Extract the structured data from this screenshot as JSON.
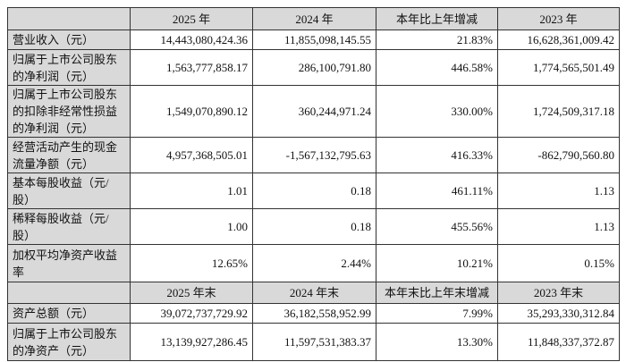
{
  "header1": [
    "",
    "2025 年",
    "2024 年",
    "本年比上年增减",
    "2023 年"
  ],
  "rows1": [
    {
      "label": "营业收入（元）",
      "values": [
        "14,443,080,424.36",
        "11,855,098,145.55",
        "21.83%",
        "16,628,361,009.42"
      ]
    },
    {
      "label": "归属于上市公司股东的净利润（元）",
      "values": [
        "1,563,777,858.17",
        "286,100,791.80",
        "446.58%",
        "1,774,565,501.49"
      ]
    },
    {
      "label": "归属于上市公司股东的扣除非经常性损益的净利润（元）",
      "values": [
        "1,549,070,890.12",
        "360,244,971.24",
        "330.00%",
        "1,724,509,317.18"
      ]
    },
    {
      "label": "经营活动产生的现金流量净额（元）",
      "values": [
        "4,957,368,505.01",
        "-1,567,132,795.63",
        "416.33%",
        "-862,790,560.80"
      ]
    },
    {
      "label": "基本每股收益（元/股）",
      "values": [
        "1.01",
        "0.18",
        "461.11%",
        "1.13"
      ]
    },
    {
      "label": "稀释每股收益（元/股）",
      "values": [
        "1.00",
        "0.18",
        "455.56%",
        "1.13"
      ]
    },
    {
      "label": "加权平均净资产收益率",
      "values": [
        "12.65%",
        "2.44%",
        "10.21%",
        "0.15%"
      ]
    }
  ],
  "header2": [
    "",
    "2025 年末",
    "2024 年末",
    "本年末比上年末增减",
    "2023 年末"
  ],
  "rows2": [
    {
      "label": "资产总额（元）",
      "values": [
        "39,072,737,729.92",
        "36,182,558,952.99",
        "7.99%",
        "35,293,330,312.84"
      ]
    },
    {
      "label": "归属于上市公司股东的净资产（元）",
      "values": [
        "13,139,927,286.45",
        "11,597,531,383.37",
        "13.30%",
        "11,848,337,372.87"
      ]
    }
  ]
}
